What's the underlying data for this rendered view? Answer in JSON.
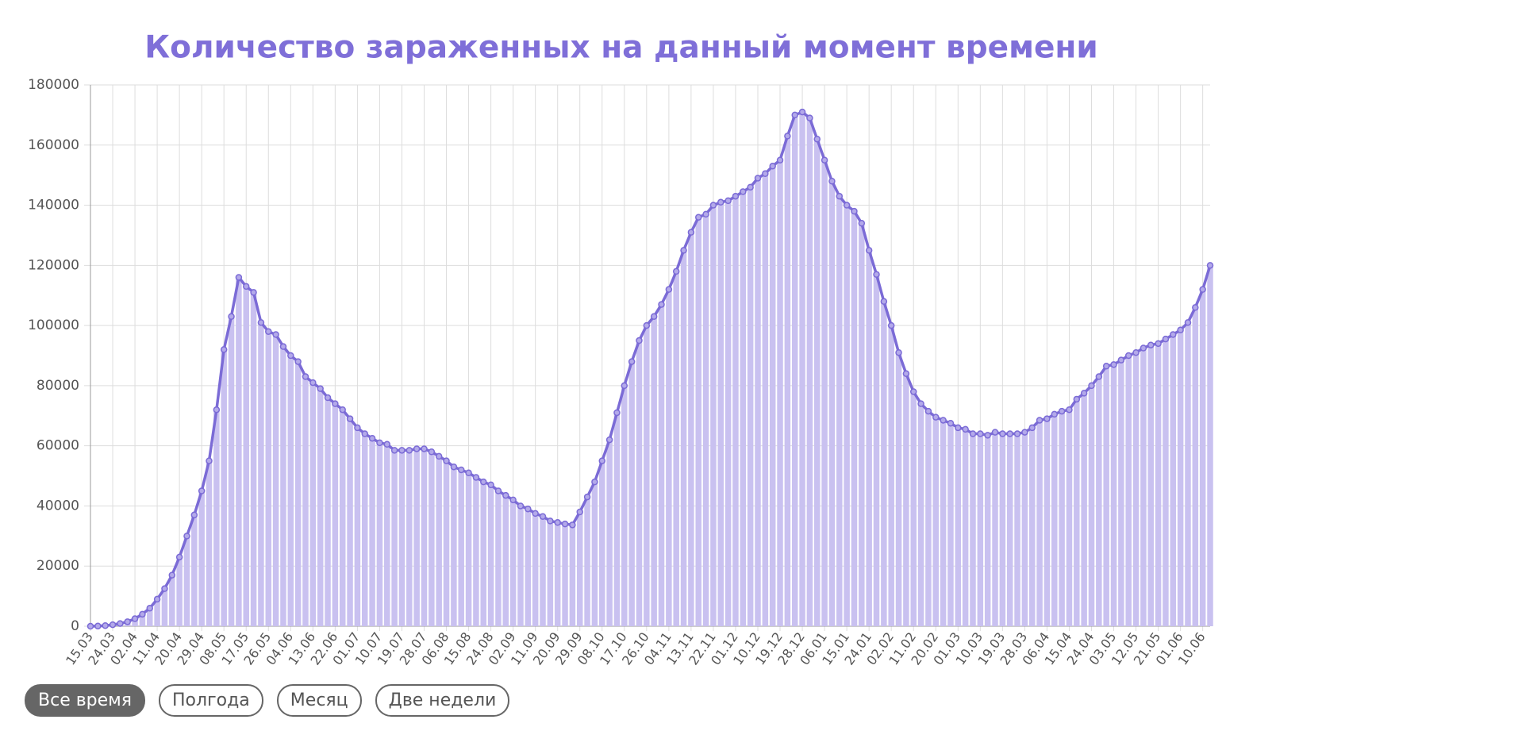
{
  "chart_data": {
    "type": "bar-line",
    "title": "Количество зараженных на данный момент времени",
    "categories": [
      "15.03",
      null,
      null,
      "24.03",
      null,
      null,
      "02.04",
      null,
      null,
      "11.04",
      null,
      null,
      "20.04",
      null,
      null,
      "29.04",
      null,
      null,
      "08.05",
      null,
      null,
      "17.05",
      null,
      null,
      "26.05",
      null,
      null,
      "04.06",
      null,
      null,
      "13.06",
      null,
      null,
      "22.06",
      null,
      null,
      "01.07",
      null,
      null,
      "10.07",
      null,
      null,
      "19.07",
      null,
      null,
      "28.07",
      null,
      null,
      "06.08",
      null,
      null,
      "15.08",
      null,
      null,
      "24.08",
      null,
      null,
      "02.09",
      null,
      null,
      "11.09",
      null,
      null,
      "20.09",
      null,
      null,
      "29.09",
      null,
      null,
      "08.10",
      null,
      null,
      "17.10",
      null,
      null,
      "26.10",
      null,
      null,
      "04.11",
      null,
      null,
      "13.11",
      null,
      null,
      "22.11",
      null,
      null,
      "01.12",
      null,
      null,
      "10.12",
      null,
      null,
      "19.12",
      null,
      null,
      "28.12",
      null,
      null,
      "06.01",
      null,
      null,
      "15.01",
      null,
      null,
      "24.01",
      null,
      null,
      "02.02",
      null,
      null,
      "11.02",
      null,
      null,
      "20.02",
      null,
      null,
      "01.03",
      null,
      null,
      "10.03",
      null,
      null,
      "19.03",
      null,
      null,
      "28.03",
      null,
      null,
      "06.04",
      null,
      null,
      "15.04",
      null,
      null,
      "24.04",
      null,
      null,
      "03.05",
      null,
      null,
      "12.05",
      null,
      null,
      "21.05",
      null,
      null,
      "01.06",
      null,
      null,
      "10.06",
      null
    ],
    "values": [
      0,
      50,
      200,
      500,
      900,
      1500,
      2500,
      4000,
      6000,
      9000,
      12500,
      17000,
      23000,
      30000,
      37000,
      45000,
      55000,
      72000,
      92000,
      103000,
      116000,
      113000,
      111000,
      101000,
      98000,
      97000,
      93000,
      90000,
      88000,
      83000,
      81000,
      79000,
      76000,
      74000,
      72000,
      69000,
      66000,
      64000,
      62500,
      61000,
      60500,
      58500,
      58500,
      58500,
      59000,
      59000,
      58000,
      56500,
      55000,
      53000,
      52000,
      51000,
      49500,
      48000,
      47000,
      45000,
      43500,
      42000,
      40000,
      39000,
      37500,
      36500,
      35000,
      34500,
      34000,
      33700,
      38000,
      43000,
      48000,
      55000,
      62000,
      71000,
      80000,
      88000,
      95000,
      100000,
      103000,
      107000,
      112000,
      118000,
      125000,
      131000,
      136000,
      137000,
      140000,
      141000,
      141500,
      143000,
      144500,
      146000,
      149000,
      150500,
      153000,
      155000,
      163000,
      170000,
      171000,
      169000,
      162000,
      155000,
      148000,
      143000,
      140000,
      138000,
      134000,
      125000,
      117000,
      108000,
      100000,
      91000,
      84000,
      78000,
      74000,
      71500,
      69500,
      68500,
      67500,
      66000,
      65500,
      64000,
      64000,
      63500,
      64500,
      64000,
      64000,
      64000,
      64500,
      66000,
      68500,
      69000,
      70500,
      71500,
      72000,
      75500,
      77500,
      80000,
      83000,
      86500,
      87000,
      88500,
      90000,
      91000,
      92500,
      93500,
      94000,
      95500,
      97000,
      98500,
      101000,
      106000,
      112000,
      120000
    ],
    "color": "#7b6bd6",
    "fill": "#c9c1f0",
    "ylim": [
      0,
      180000
    ],
    "yticks": [
      0,
      20000,
      40000,
      60000,
      80000,
      100000,
      120000,
      140000,
      160000,
      180000
    ],
    "grid": true
  },
  "buttons": [
    "Все время",
    "Полгода",
    "Месяц",
    "Две недели"
  ]
}
